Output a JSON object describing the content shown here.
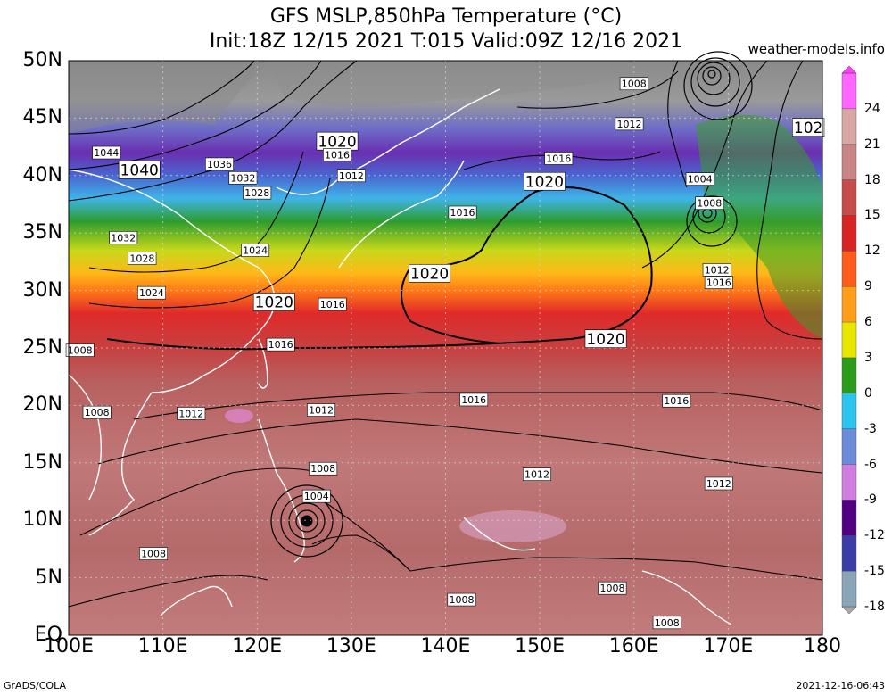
{
  "header": {
    "line1": "GFS MSLP,850hPa Temperature (°C)",
    "line2": "Init:18Z 12/15 2021 T:015 Valid:09Z 12/16 2021",
    "site": "weather-models.info"
  },
  "axes": {
    "lat_labels": [
      "50N",
      "45N",
      "40N",
      "35N",
      "30N",
      "25N",
      "20N",
      "15N",
      "10N",
      "5N",
      "EQ"
    ],
    "lon_labels": [
      "100E",
      "110E",
      "120E",
      "130E",
      "140E",
      "150E",
      "160E",
      "170E",
      "180"
    ]
  },
  "colorbar": {
    "ticks": [
      "24",
      "21",
      "18",
      "15",
      "12",
      "9",
      "6",
      "3",
      "0",
      "-3",
      "-6",
      "-9",
      "-12",
      "-15",
      "-18"
    ],
    "colors": [
      "#ff66ff",
      "#d9a6a6",
      "#c98585",
      "#c64b4b",
      "#d92424",
      "#ff5b1a",
      "#ff9e1a",
      "#e8e600",
      "#2b9c1a",
      "#2bc4ee",
      "#6c8bd8",
      "#d07de0",
      "#500080",
      "#3c3ca8",
      "#8aa4b8"
    ]
  },
  "map_features": {
    "pressure_labels": [
      {
        "text": "1008",
        "lon": 160.0,
        "lat": 48.0
      },
      {
        "text": "1012",
        "lon": 159.5,
        "lat": 44.5
      },
      {
        "text": "1016",
        "lon": 152.0,
        "lat": 41.5
      },
      {
        "text": "1020",
        "lon": 150.5,
        "lat": 39.5,
        "big": true
      },
      {
        "text": "1020",
        "lon": 128.5,
        "lat": 43.0,
        "big": true
      },
      {
        "text": "1016",
        "lon": 128.5,
        "lat": 41.8
      },
      {
        "text": "1012",
        "lon": 130.0,
        "lat": 40.0
      },
      {
        "text": "1044",
        "lon": 104.0,
        "lat": 42.0
      },
      {
        "text": "1040",
        "lon": 107.5,
        "lat": 40.5,
        "big": true
      },
      {
        "text": "1036",
        "lon": 116.0,
        "lat": 41.0
      },
      {
        "text": "1032",
        "lon": 118.5,
        "lat": 39.8
      },
      {
        "text": "1028",
        "lon": 120.0,
        "lat": 38.5
      },
      {
        "text": "1032",
        "lon": 105.8,
        "lat": 34.6
      },
      {
        "text": "1028",
        "lon": 107.8,
        "lat": 32.8
      },
      {
        "text": "1024",
        "lon": 119.8,
        "lat": 33.5
      },
      {
        "text": "1024",
        "lon": 108.8,
        "lat": 29.8
      },
      {
        "text": "1020",
        "lon": 121.8,
        "lat": 29.0,
        "big": true
      },
      {
        "text": "1016",
        "lon": 128.0,
        "lat": 28.8
      },
      {
        "text": "1016",
        "lon": 141.8,
        "lat": 36.8
      },
      {
        "text": "1020",
        "lon": 138.3,
        "lat": 31.5,
        "big": true
      },
      {
        "text": "1020",
        "lon": 157.0,
        "lat": 25.8,
        "big": true
      },
      {
        "text": "1016",
        "lon": 122.5,
        "lat": 25.3
      },
      {
        "text": "1008",
        "lon": 101.2,
        "lat": 24.8
      },
      {
        "text": "1016",
        "lon": 143.0,
        "lat": 20.5
      },
      {
        "text": "1016",
        "lon": 164.5,
        "lat": 20.4
      },
      {
        "text": "1012",
        "lon": 113.0,
        "lat": 19.3
      },
      {
        "text": "1012",
        "lon": 126.8,
        "lat": 19.6
      },
      {
        "text": "1008",
        "lon": 103.0,
        "lat": 19.4
      },
      {
        "text": "1008",
        "lon": 127.0,
        "lat": 14.5
      },
      {
        "text": "1012",
        "lon": 149.7,
        "lat": 14.0
      },
      {
        "text": "1012",
        "lon": 169.0,
        "lat": 13.2
      },
      {
        "text": "1004",
        "lon": 126.3,
        "lat": 12.1
      },
      {
        "text": "1008",
        "lon": 109.0,
        "lat": 7.1
      },
      {
        "text": "1008",
        "lon": 141.7,
        "lat": 3.1
      },
      {
        "text": "1008",
        "lon": 157.7,
        "lat": 4.1
      },
      {
        "text": "1008",
        "lon": 163.5,
        "lat": 1.1
      },
      {
        "text": "1004",
        "lon": 167.0,
        "lat": 39.7
      },
      {
        "text": "1008",
        "lon": 168.0,
        "lat": 37.6
      },
      {
        "text": "1012",
        "lon": 168.8,
        "lat": 31.8
      },
      {
        "text": "1016",
        "lon": 169.0,
        "lat": 30.7
      },
      {
        "text": "102",
        "lon": 178.5,
        "lat": 44.2,
        "big": true
      }
    ]
  },
  "footer": {
    "left": "GrADS/COLA",
    "right": "2021-12-16-06:43"
  }
}
